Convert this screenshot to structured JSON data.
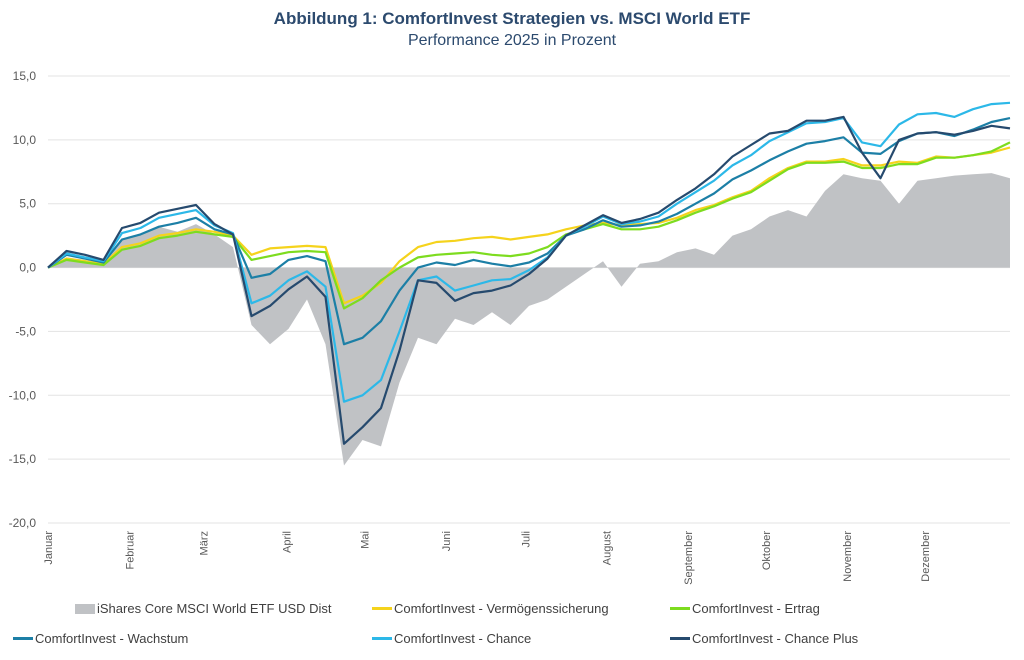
{
  "title": {
    "line1": "Abbildung 1: ComfortInvest Strategien vs. MSCI World ETF",
    "line2": "Performance 2025 in Prozent"
  },
  "chart_data": {
    "type": "line",
    "title": "Abbildung 1: ComfortInvest Strategien vs. MSCI World ETF",
    "subtitle": "Performance 2025 in Prozent",
    "xlabel": "",
    "ylabel": "",
    "ylim": [
      -20,
      15
    ],
    "yticks": [
      15,
      10,
      5,
      0,
      -5,
      -10,
      -15,
      -20
    ],
    "ytick_labels": [
      "15,0",
      "10,0",
      "5,0",
      "0,0",
      "-5,0",
      "-10,0",
      "-15,0",
      "-20,0"
    ],
    "x_unit": "week of 2025 (0 = 1. Januar, 52 = Jahresende)",
    "x": [
      0,
      1,
      2,
      3,
      4,
      5,
      6,
      7,
      8,
      9,
      10,
      11,
      12,
      13,
      14,
      15,
      16,
      17,
      18,
      19,
      20,
      21,
      22,
      23,
      24,
      25,
      26,
      27,
      28,
      29,
      30,
      31,
      32,
      33,
      34,
      35,
      36,
      37,
      38,
      39,
      40,
      41,
      42,
      43,
      44,
      45,
      46,
      47,
      48,
      49,
      50,
      51,
      52
    ],
    "month_ticks": [
      {
        "label": "Januar",
        "week": 0
      },
      {
        "label": "Februar",
        "week": 4.4
      },
      {
        "label": "März",
        "week": 8.4
      },
      {
        "label": "April",
        "week": 12.9
      },
      {
        "label": "Mai",
        "week": 17.1
      },
      {
        "label": "Juni",
        "week": 21.5
      },
      {
        "label": "Juli",
        "week": 25.8
      },
      {
        "label": "August",
        "week": 30.2
      },
      {
        "label": "September",
        "week": 34.6
      },
      {
        "label": "Oktober",
        "week": 38.8
      },
      {
        "label": "November",
        "week": 43.2
      },
      {
        "label": "Dezember",
        "week": 47.4
      }
    ],
    "grid": true,
    "legend_position": "bottom",
    "series": [
      {
        "name": "iShares Core MSCI World ETF USD Dist",
        "style": "area",
        "color": "#c0c2c5",
        "values": [
          0.0,
          0.8,
          0.6,
          0.3,
          2.2,
          2.6,
          3.2,
          2.8,
          3.4,
          2.6,
          1.6,
          -4.5,
          -6.0,
          -4.8,
          -2.5,
          -6.0,
          -15.5,
          -13.5,
          -14.0,
          -9.0,
          -5.5,
          -6.0,
          -4.0,
          -4.5,
          -3.5,
          -4.5,
          -3.0,
          -2.5,
          -1.5,
          -0.5,
          0.5,
          -1.5,
          0.3,
          0.5,
          1.2,
          1.5,
          1.0,
          2.5,
          3.0,
          4.0,
          4.5,
          4.0,
          6.0,
          7.3,
          7.0,
          6.8,
          5.0,
          6.8,
          7.0,
          7.2,
          7.3,
          7.4,
          7.0
        ]
      },
      {
        "name": "ComfortInvest - Vermögenssicherung",
        "style": "line",
        "color": "#f5d31c",
        "values": [
          0.0,
          0.7,
          0.5,
          0.3,
          1.6,
          1.9,
          2.5,
          2.7,
          3.0,
          2.8,
          2.5,
          1.0,
          1.5,
          1.6,
          1.7,
          1.6,
          -2.8,
          -2.2,
          -1.2,
          0.5,
          1.6,
          2.0,
          2.1,
          2.3,
          2.4,
          2.2,
          2.4,
          2.6,
          3.0,
          3.3,
          3.5,
          3.3,
          3.4,
          3.5,
          3.9,
          4.5,
          4.9,
          5.5,
          6.0,
          7.0,
          7.8,
          8.3,
          8.3,
          8.5,
          8.0,
          8.0,
          8.3,
          8.2,
          8.7,
          8.6,
          8.8,
          9.0,
          9.4
        ]
      },
      {
        "name": "ComfortInvest - Ertrag",
        "style": "line",
        "color": "#7ddc1f",
        "values": [
          0.0,
          0.6,
          0.4,
          0.2,
          1.4,
          1.7,
          2.3,
          2.5,
          2.8,
          2.6,
          2.4,
          0.6,
          0.9,
          1.2,
          1.3,
          1.2,
          -3.2,
          -2.4,
          -1.0,
          0.0,
          0.8,
          1.0,
          1.1,
          1.2,
          1.0,
          0.9,
          1.1,
          1.6,
          2.6,
          3.0,
          3.4,
          3.0,
          3.0,
          3.2,
          3.7,
          4.3,
          4.8,
          5.4,
          5.9,
          6.8,
          7.7,
          8.2,
          8.2,
          8.3,
          7.8,
          7.8,
          8.1,
          8.1,
          8.6,
          8.6,
          8.8,
          9.1,
          9.8
        ]
      },
      {
        "name": "ComfortInvest - Wachstum",
        "style": "line",
        "color": "#1c7fa6",
        "values": [
          0.0,
          1.0,
          0.7,
          0.4,
          2.2,
          2.6,
          3.2,
          3.5,
          3.9,
          3.0,
          2.6,
          -0.8,
          -0.5,
          0.6,
          0.9,
          0.5,
          -6.0,
          -5.5,
          -4.2,
          -1.8,
          0.0,
          0.4,
          0.2,
          0.6,
          0.3,
          0.1,
          0.4,
          1.1,
          2.5,
          3.0,
          3.7,
          3.2,
          3.3,
          3.6,
          4.2,
          5.0,
          5.8,
          6.9,
          7.6,
          8.4,
          9.1,
          9.7,
          9.9,
          10.2,
          9.0,
          8.9,
          9.9,
          10.5,
          10.6,
          10.3,
          10.8,
          11.4,
          11.7
        ]
      },
      {
        "name": "ComfortInvest - Chance",
        "style": "line",
        "color": "#2cb8e8",
        "values": [
          0.0,
          1.1,
          0.8,
          0.5,
          2.7,
          3.1,
          3.9,
          4.2,
          4.5,
          3.3,
          2.7,
          -2.8,
          -2.2,
          -1.0,
          -0.3,
          -1.5,
          -10.5,
          -10.0,
          -8.8,
          -5.0,
          -1.0,
          -0.7,
          -1.8,
          -1.4,
          -1.0,
          -0.9,
          -0.2,
          0.8,
          2.5,
          3.2,
          4.0,
          3.4,
          3.6,
          4.0,
          5.0,
          5.9,
          6.8,
          8.0,
          8.8,
          9.9,
          10.6,
          11.3,
          11.4,
          11.7,
          9.8,
          9.5,
          11.2,
          12.0,
          12.1,
          11.8,
          12.4,
          12.8,
          12.9
        ]
      },
      {
        "name": "ComfortInvest - Chance Plus",
        "style": "line",
        "color": "#264a6e",
        "values": [
          0.0,
          1.3,
          1.0,
          0.6,
          3.1,
          3.5,
          4.3,
          4.6,
          4.9,
          3.4,
          2.6,
          -3.8,
          -3.0,
          -1.7,
          -0.7,
          -2.3,
          -13.8,
          -12.5,
          -11.0,
          -6.5,
          -1.0,
          -1.2,
          -2.6,
          -2.0,
          -1.8,
          -1.4,
          -0.5,
          0.7,
          2.5,
          3.3,
          4.1,
          3.5,
          3.8,
          4.3,
          5.3,
          6.2,
          7.3,
          8.7,
          9.6,
          10.5,
          10.7,
          11.5,
          11.5,
          11.8,
          9.0,
          7.0,
          10.0,
          10.5,
          10.6,
          10.4,
          10.7,
          11.1,
          10.9
        ]
      }
    ]
  },
  "legend": [
    {
      "label": "iShares Core MSCI World ETF USD Dist",
      "kind": "area",
      "color": "#c0c2c5"
    },
    {
      "label": "ComfortInvest - Vermögenssicherung",
      "kind": "line",
      "color": "#f5d31c"
    },
    {
      "label": "ComfortInvest - Ertrag",
      "kind": "line",
      "color": "#7ddc1f"
    },
    {
      "label": "ComfortInvest - Wachstum",
      "kind": "line",
      "color": "#1c7fa6"
    },
    {
      "label": "ComfortInvest - Chance",
      "kind": "line",
      "color": "#2cb8e8"
    },
    {
      "label": "ComfortInvest - Chance Plus",
      "kind": "line",
      "color": "#264a6e"
    }
  ]
}
